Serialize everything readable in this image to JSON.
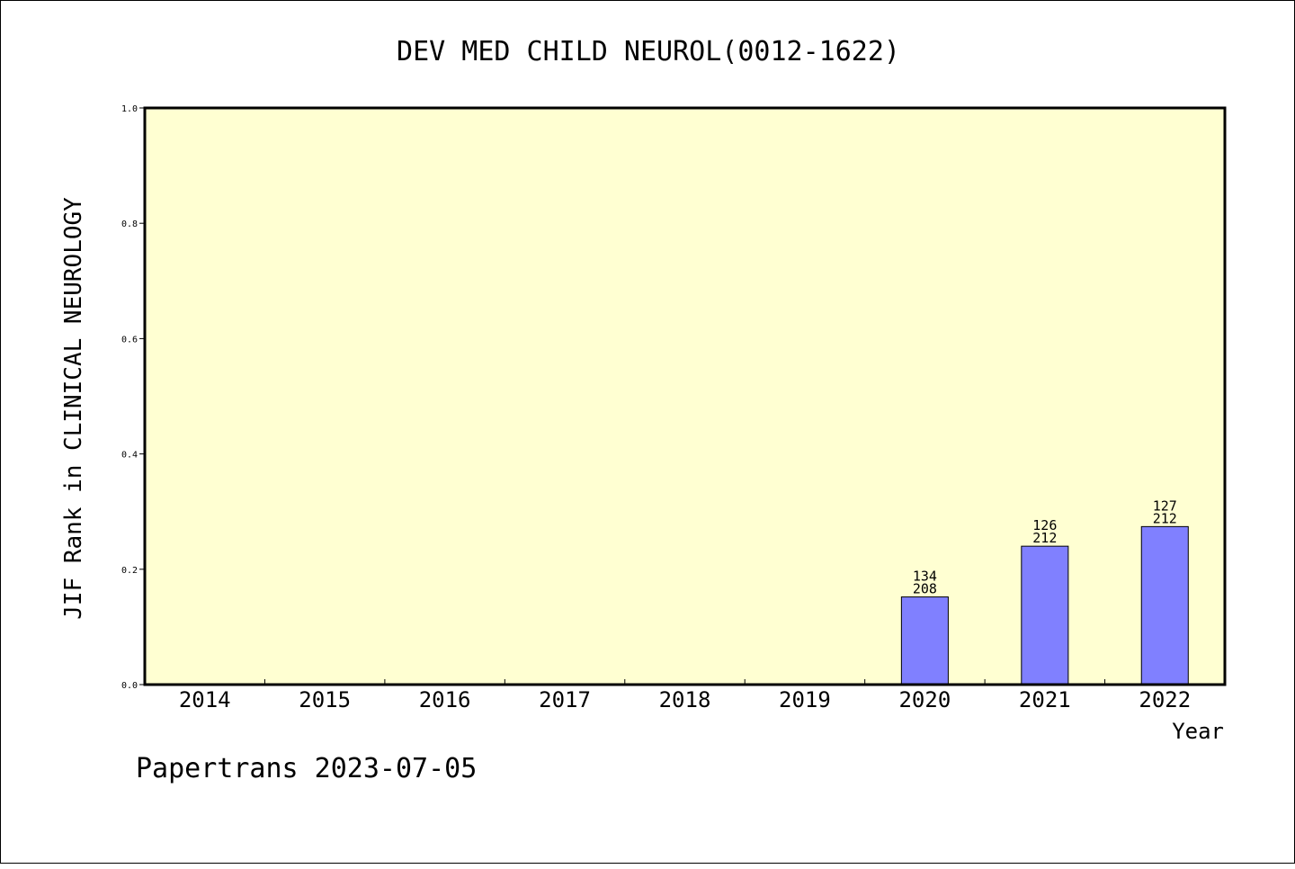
{
  "chart_data": {
    "type": "bar",
    "title": "DEV MED CHILD NEUROL(0012-1622)",
    "xlabel": "Year",
    "ylabel": "JIF Rank in CLINICAL NEUROLOGY",
    "categories": [
      "2014",
      "2015",
      "2016",
      "2017",
      "2018",
      "2019",
      "2020",
      "2021",
      "2022"
    ],
    "series": [
      {
        "values": [
          null,
          null,
          null,
          null,
          null,
          null,
          0.152,
          0.24,
          0.274
        ],
        "rank": [
          null,
          null,
          null,
          null,
          null,
          null,
          "134",
          "126",
          "127"
        ],
        "total": [
          null,
          null,
          null,
          null,
          null,
          null,
          "208",
          "212",
          "212"
        ]
      }
    ],
    "ylim": [
      0,
      1.0
    ],
    "yticks": [
      "0.0",
      "0.2",
      "0.4",
      "0.6",
      "0.8",
      "1.0"
    ],
    "grid": false,
    "colors": {
      "plot_background": "#FFFFD2",
      "bar_fill": "#8080FF",
      "axis": "#000000"
    }
  },
  "footer": "Papertrans 2023-07-05"
}
